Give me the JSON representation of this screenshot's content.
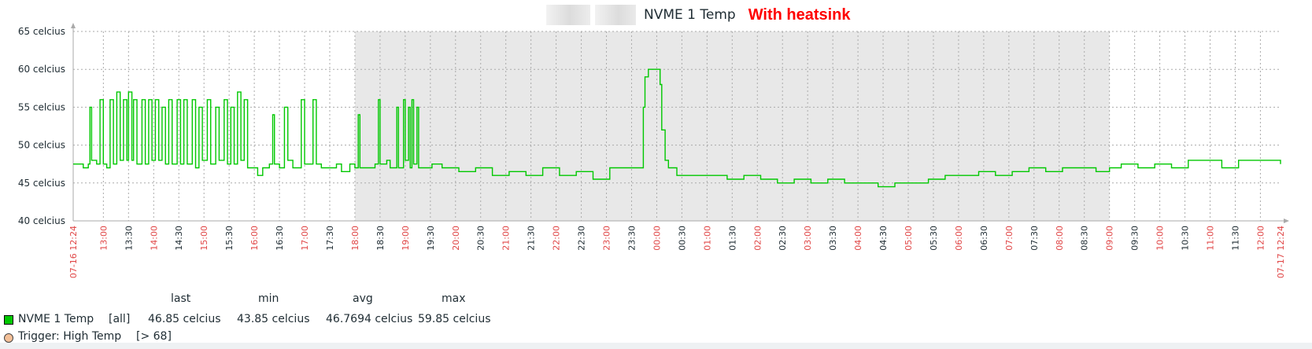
{
  "header": {
    "title": "NVME 1 Temp",
    "note": "With heatsink",
    "note_color": "#ff0000"
  },
  "chart_data": {
    "type": "line",
    "title": "NVME 1 Temp",
    "y_unit": "celcius",
    "ylim": [
      40,
      65
    ],
    "y_ticks": [
      "40 celcius",
      "45 celcius",
      "50 celcius",
      "55 celcius",
      "60 celcius",
      "65 celcius"
    ],
    "x_start_label": "07-16 12:24",
    "x_end_label": "07-17 12:24",
    "x_tick_labels": [
      "13:00",
      "13:30",
      "14:00",
      "14:30",
      "15:00",
      "15:30",
      "16:00",
      "16:30",
      "17:00",
      "17:30",
      "18:00",
      "18:30",
      "19:00",
      "19:30",
      "20:00",
      "20:30",
      "21:00",
      "21:30",
      "22:00",
      "22:30",
      "23:00",
      "23:30",
      "00:00",
      "00:30",
      "01:00",
      "01:30",
      "02:00",
      "02:30",
      "03:00",
      "03:30",
      "04:00",
      "04:30",
      "05:00",
      "05:30",
      "06:00",
      "06:30",
      "07:00",
      "07:30",
      "08:00",
      "08:30",
      "09:00",
      "09:30",
      "10:00",
      "10:30",
      "11:00",
      "11:30",
      "12:00"
    ],
    "x_tick_minutes_from_start": [
      36,
      66,
      96,
      126,
      156,
      186,
      216,
      246,
      276,
      306,
      336,
      366,
      396,
      426,
      456,
      486,
      516,
      546,
      576,
      606,
      636,
      666,
      696,
      726,
      756,
      786,
      816,
      846,
      876,
      906,
      936,
      966,
      996,
      1026,
      1056,
      1086,
      1116,
      1146,
      1176,
      1206,
      1236,
      1266,
      1296,
      1326,
      1356,
      1386,
      1416
    ],
    "highlight_hours": [
      "13:00",
      "14:00",
      "15:00",
      "16:00",
      "17:00",
      "18:00",
      "19:00",
      "20:00",
      "21:00",
      "22:00",
      "23:00",
      "00:00",
      "01:00",
      "02:00",
      "03:00",
      "04:00",
      "05:00",
      "06:00",
      "07:00",
      "08:00",
      "09:00",
      "10:00",
      "11:00",
      "12:00"
    ],
    "shaded_period": [
      "18:00",
      "09:00"
    ],
    "series": [
      {
        "name": "NVME 1 Temp",
        "color": "#00c800",
        "max_color": "#ffaaaa",
        "points": [
          [
            0,
            47.5
          ],
          [
            12,
            47
          ],
          [
            18,
            47.5
          ],
          [
            20,
            55
          ],
          [
            22,
            48
          ],
          [
            28,
            47.5
          ],
          [
            32,
            56
          ],
          [
            36,
            47.5
          ],
          [
            40,
            47
          ],
          [
            44,
            56
          ],
          [
            48,
            47.5
          ],
          [
            52,
            57
          ],
          [
            56,
            48
          ],
          [
            60,
            56
          ],
          [
            64,
            48
          ],
          [
            66,
            57
          ],
          [
            70,
            48
          ],
          [
            72,
            56
          ],
          [
            76,
            47.5
          ],
          [
            82,
            56
          ],
          [
            86,
            47.5
          ],
          [
            90,
            56
          ],
          [
            94,
            48
          ],
          [
            98,
            56
          ],
          [
            102,
            48
          ],
          [
            106,
            55
          ],
          [
            110,
            47.5
          ],
          [
            114,
            56
          ],
          [
            118,
            47.5
          ],
          [
            124,
            56
          ],
          [
            128,
            47.5
          ],
          [
            132,
            56
          ],
          [
            136,
            47.5
          ],
          [
            142,
            56
          ],
          [
            146,
            47
          ],
          [
            150,
            55
          ],
          [
            154,
            48
          ],
          [
            160,
            56
          ],
          [
            164,
            47.5
          ],
          [
            170,
            55
          ],
          [
            174,
            48
          ],
          [
            180,
            56
          ],
          [
            184,
            47.5
          ],
          [
            188,
            55
          ],
          [
            192,
            47.5
          ],
          [
            196,
            57
          ],
          [
            200,
            48
          ],
          [
            204,
            56
          ],
          [
            208,
            47
          ],
          [
            216,
            47
          ],
          [
            220,
            46
          ],
          [
            226,
            47
          ],
          [
            234,
            47.5
          ],
          [
            238,
            54
          ],
          [
            240,
            47.5
          ],
          [
            246,
            47
          ],
          [
            252,
            55
          ],
          [
            256,
            48
          ],
          [
            262,
            47
          ],
          [
            272,
            56
          ],
          [
            276,
            47.5
          ],
          [
            286,
            56
          ],
          [
            290,
            47.5
          ],
          [
            296,
            47
          ],
          [
            306,
            47
          ],
          [
            314,
            47.5
          ],
          [
            320,
            46.5
          ],
          [
            330,
            47.5
          ],
          [
            336,
            47
          ],
          [
            340,
            54
          ],
          [
            342,
            47
          ],
          [
            352,
            47
          ],
          [
            360,
            47.5
          ],
          [
            364,
            56
          ],
          [
            366,
            47.5
          ],
          [
            374,
            48
          ],
          [
            378,
            47
          ],
          [
            386,
            55
          ],
          [
            388,
            47
          ],
          [
            394,
            56
          ],
          [
            396,
            48
          ],
          [
            400,
            55
          ],
          [
            402,
            47
          ],
          [
            404,
            56
          ],
          [
            406,
            47.5
          ],
          [
            410,
            55
          ],
          [
            412,
            47
          ],
          [
            420,
            47
          ],
          [
            428,
            47.5
          ],
          [
            440,
            47
          ],
          [
            460,
            46.5
          ],
          [
            480,
            47
          ],
          [
            500,
            46
          ],
          [
            520,
            46.5
          ],
          [
            540,
            46
          ],
          [
            560,
            47
          ],
          [
            580,
            46
          ],
          [
            600,
            46.5
          ],
          [
            620,
            45.5
          ],
          [
            640,
            47
          ],
          [
            660,
            47
          ],
          [
            678,
            47
          ],
          [
            680,
            55
          ],
          [
            682,
            59
          ],
          [
            686,
            60
          ],
          [
            698,
            60
          ],
          [
            700,
            58
          ],
          [
            702,
            52
          ],
          [
            706,
            48
          ],
          [
            710,
            47
          ],
          [
            720,
            46
          ],
          [
            740,
            46
          ],
          [
            760,
            46
          ],
          [
            780,
            45.5
          ],
          [
            800,
            46
          ],
          [
            820,
            45.5
          ],
          [
            840,
            45
          ],
          [
            860,
            45.5
          ],
          [
            880,
            45
          ],
          [
            900,
            45.5
          ],
          [
            920,
            45
          ],
          [
            940,
            45
          ],
          [
            960,
            44.5
          ],
          [
            980,
            45
          ],
          [
            1000,
            45
          ],
          [
            1020,
            45.5
          ],
          [
            1040,
            46
          ],
          [
            1060,
            46
          ],
          [
            1080,
            46.5
          ],
          [
            1100,
            46
          ],
          [
            1120,
            46.5
          ],
          [
            1140,
            47
          ],
          [
            1160,
            46.5
          ],
          [
            1180,
            47
          ],
          [
            1200,
            47
          ],
          [
            1220,
            46.5
          ],
          [
            1236,
            47
          ],
          [
            1250,
            47.5
          ],
          [
            1270,
            47
          ],
          [
            1290,
            47.5
          ],
          [
            1310,
            47
          ],
          [
            1330,
            48
          ],
          [
            1350,
            48
          ],
          [
            1370,
            47
          ],
          [
            1390,
            48
          ],
          [
            1410,
            48
          ],
          [
            1440,
            47.5
          ]
        ]
      }
    ],
    "triggers": [
      {
        "name": "Trigger: High Temp",
        "condition": "[> 68]",
        "color": "#f4c098"
      }
    ]
  },
  "legend": {
    "headers": [
      "last",
      "min",
      "avg",
      "max"
    ],
    "rows": [
      {
        "name": "NVME 1 Temp",
        "func": "[all]",
        "last": "46.85 celcius",
        "min": "43.85 celcius",
        "avg": "46.7694 celcius",
        "max": "59.85 celcius",
        "color": "#00c800"
      }
    ],
    "trigger": {
      "name": "Trigger: High Temp",
      "condition": "[> 68]",
      "color": "#f4c098"
    }
  }
}
